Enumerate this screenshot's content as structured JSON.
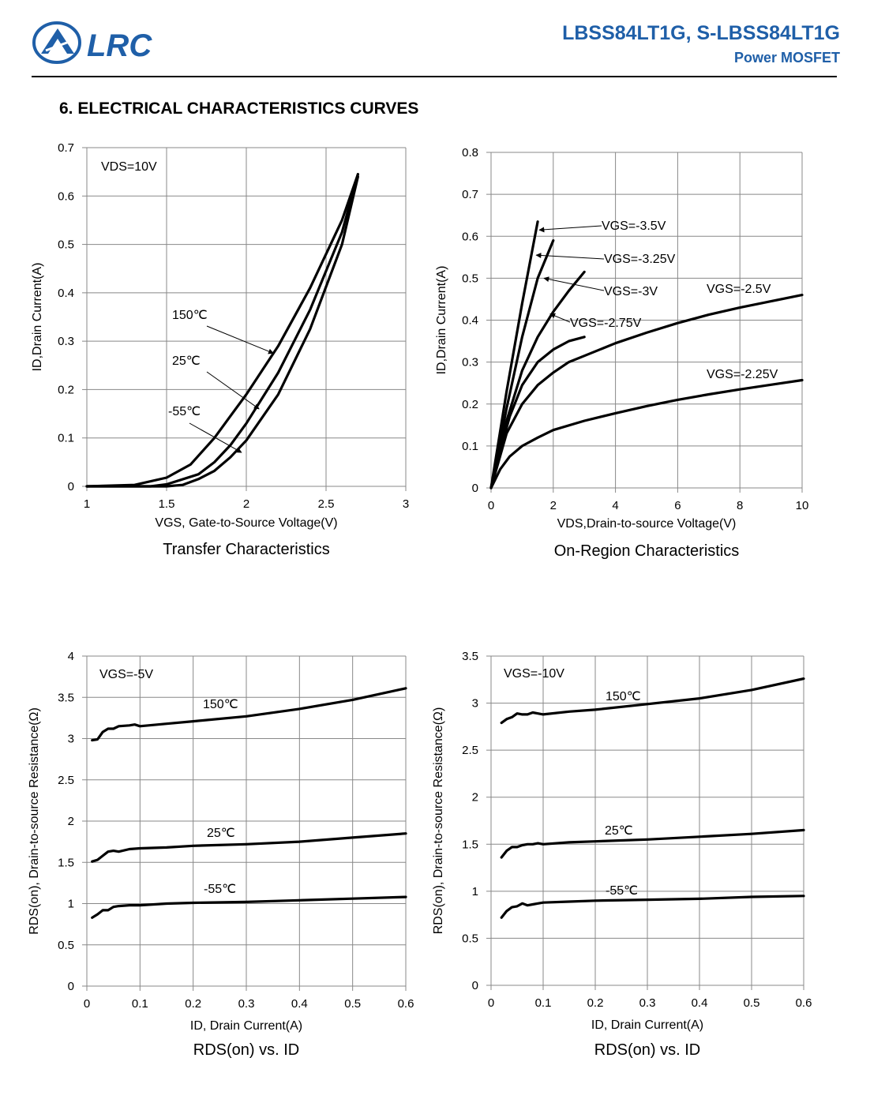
{
  "header": {
    "logo_text": "LRC",
    "title": "LBSS84LT1G, S-LBSS84LT1G",
    "subtitle": "Power MOSFET",
    "brand_color": "#1F5FA8"
  },
  "section_title": "6. ELECTRICAL CHARACTERISTICS CURVES",
  "chart_data": [
    {
      "type": "line",
      "title": "Transfer Characteristics",
      "xlabel": "VGS, Gate-to-Source Voltage(V)",
      "ylabel": "ID,Drain Current(A)",
      "xlim": [
        1,
        3
      ],
      "ylim": [
        0,
        0.7
      ],
      "xticks": [
        1,
        1.5,
        2,
        2.5,
        3
      ],
      "yticks": [
        0,
        0.1,
        0.2,
        0.3,
        0.4,
        0.5,
        0.6,
        0.7
      ],
      "grid": true,
      "annotation": "VDS=10V",
      "series": [
        {
          "name": "150℃",
          "x": [
            1.0,
            1.3,
            1.5,
            1.65,
            1.8,
            1.9,
            2.0,
            2.2,
            2.4,
            2.6,
            2.7
          ],
          "y": [
            0.0,
            0.003,
            0.018,
            0.045,
            0.1,
            0.145,
            0.19,
            0.29,
            0.41,
            0.55,
            0.645
          ]
        },
        {
          "name": "25℃",
          "x": [
            1.0,
            1.4,
            1.5,
            1.7,
            1.8,
            1.9,
            2.0,
            2.2,
            2.4,
            2.6,
            2.7
          ],
          "y": [
            0.0,
            0.0,
            0.004,
            0.025,
            0.05,
            0.085,
            0.13,
            0.235,
            0.365,
            0.525,
            0.645
          ]
        },
        {
          "name": "-55℃",
          "x": [
            1.0,
            1.5,
            1.6,
            1.7,
            1.8,
            1.9,
            2.0,
            2.2,
            2.4,
            2.6,
            2.7
          ],
          "y": [
            0.0,
            0.0,
            0.003,
            0.015,
            0.032,
            0.06,
            0.095,
            0.19,
            0.325,
            0.5,
            0.64
          ]
        }
      ]
    },
    {
      "type": "line",
      "title": "On-Region Characteristics",
      "xlabel": "VDS,Drain-to-source Voltage(V)",
      "ylabel": "ID,Drain Current(A)",
      "xlim": [
        0,
        10
      ],
      "ylim": [
        0,
        0.8
      ],
      "xticks": [
        0,
        2,
        4,
        6,
        8,
        10
      ],
      "yticks": [
        0,
        0.1,
        0.2,
        0.3,
        0.4,
        0.5,
        0.6,
        0.7,
        0.8
      ],
      "grid": true,
      "series": [
        {
          "name": "VGS=-3.5V",
          "x": [
            0,
            0.5,
            1.0,
            1.5
          ],
          "y": [
            0,
            0.23,
            0.44,
            0.635
          ]
        },
        {
          "name": "VGS=-3.25V",
          "x": [
            0,
            0.5,
            1.0,
            1.5,
            2.0
          ],
          "y": [
            0,
            0.19,
            0.36,
            0.5,
            0.59
          ]
        },
        {
          "name": "VGS=-3V",
          "x": [
            0,
            0.5,
            1.0,
            1.5,
            2.0,
            2.5,
            3.0
          ],
          "y": [
            0,
            0.16,
            0.28,
            0.36,
            0.42,
            0.47,
            0.515
          ]
        },
        {
          "name": "VGS=-2.75V",
          "x": [
            0,
            0.3,
            0.6,
            1.0,
            1.5,
            2.0,
            2.5,
            3.0
          ],
          "y": [
            0,
            0.09,
            0.17,
            0.245,
            0.3,
            0.33,
            0.35,
            0.36
          ]
        },
        {
          "name": "VGS=-2.5V",
          "x": [
            0,
            0.5,
            1.0,
            1.5,
            2.0,
            2.5,
            3.0,
            4.0,
            5.0,
            6.0,
            7.0,
            8.0,
            9.0,
            10.0
          ],
          "y": [
            0,
            0.13,
            0.2,
            0.245,
            0.275,
            0.3,
            0.315,
            0.345,
            0.37,
            0.393,
            0.413,
            0.43,
            0.445,
            0.46
          ]
        },
        {
          "name": "VGS=-2.25V",
          "x": [
            0,
            0.3,
            0.6,
            1.0,
            1.5,
            2.0,
            3.0,
            4.0,
            5.0,
            6.0,
            7.0,
            8.0,
            9.0,
            10.0
          ],
          "y": [
            0,
            0.045,
            0.075,
            0.1,
            0.12,
            0.138,
            0.16,
            0.178,
            0.195,
            0.21,
            0.223,
            0.235,
            0.246,
            0.257
          ]
        }
      ]
    },
    {
      "type": "line",
      "title": "RDS(on) vs.  ID",
      "xlabel": "ID, Drain Current(A)",
      "ylabel": "RDS(on), Drain-to-source Resistance(Ω)",
      "xlim": [
        0,
        0.6
      ],
      "ylim": [
        0,
        4
      ],
      "xticks": [
        0,
        0.1,
        0.2,
        0.3,
        0.4,
        0.5,
        0.6
      ],
      "yticks": [
        0,
        0.5,
        1,
        1.5,
        2,
        2.5,
        3,
        3.5,
        4
      ],
      "grid": true,
      "annotation": "VGS=-5V",
      "series": [
        {
          "name": "150℃",
          "x": [
            0.01,
            0.02,
            0.03,
            0.04,
            0.05,
            0.06,
            0.08,
            0.09,
            0.1,
            0.15,
            0.2,
            0.3,
            0.4,
            0.5,
            0.6
          ],
          "y": [
            2.98,
            2.99,
            3.08,
            3.12,
            3.12,
            3.15,
            3.16,
            3.17,
            3.15,
            3.18,
            3.21,
            3.27,
            3.36,
            3.47,
            3.61
          ]
        },
        {
          "name": "25℃",
          "x": [
            0.01,
            0.02,
            0.03,
            0.04,
            0.05,
            0.06,
            0.08,
            0.1,
            0.15,
            0.2,
            0.3,
            0.4,
            0.5,
            0.6
          ],
          "y": [
            1.51,
            1.53,
            1.58,
            1.63,
            1.64,
            1.63,
            1.66,
            1.67,
            1.68,
            1.7,
            1.72,
            1.75,
            1.8,
            1.85
          ]
        },
        {
          "name": "-55℃",
          "x": [
            0.01,
            0.02,
            0.03,
            0.04,
            0.05,
            0.06,
            0.08,
            0.1,
            0.15,
            0.2,
            0.3,
            0.4,
            0.5,
            0.6
          ],
          "y": [
            0.83,
            0.87,
            0.92,
            0.92,
            0.96,
            0.97,
            0.98,
            0.98,
            1.0,
            1.01,
            1.02,
            1.04,
            1.06,
            1.08
          ]
        }
      ]
    },
    {
      "type": "line",
      "title": "RDS(on) vs.  ID",
      "xlabel": "ID, Drain Current(A)",
      "ylabel": "RDS(on), Drain-to-source Resistance(Ω)",
      "xlim": [
        0,
        0.6
      ],
      "ylim": [
        0,
        3.5
      ],
      "xticks": [
        0,
        0.1,
        0.2,
        0.3,
        0.4,
        0.5,
        0.6
      ],
      "yticks": [
        0,
        0.5,
        1,
        1.5,
        2,
        2.5,
        3,
        3.5
      ],
      "grid": true,
      "annotation": "VGS=-10V",
      "series": [
        {
          "name": "150℃",
          "x": [
            0.02,
            0.03,
            0.04,
            0.05,
            0.06,
            0.07,
            0.08,
            0.09,
            0.1,
            0.15,
            0.2,
            0.3,
            0.4,
            0.5,
            0.6
          ],
          "y": [
            2.79,
            2.83,
            2.85,
            2.89,
            2.88,
            2.88,
            2.9,
            2.89,
            2.88,
            2.91,
            2.93,
            2.99,
            3.05,
            3.14,
            3.26
          ]
        },
        {
          "name": "25℃",
          "x": [
            0.02,
            0.03,
            0.04,
            0.05,
            0.06,
            0.07,
            0.08,
            0.09,
            0.1,
            0.15,
            0.2,
            0.3,
            0.4,
            0.5,
            0.6
          ],
          "y": [
            1.36,
            1.43,
            1.47,
            1.47,
            1.49,
            1.5,
            1.5,
            1.51,
            1.5,
            1.52,
            1.53,
            1.55,
            1.58,
            1.61,
            1.65
          ]
        },
        {
          "name": "-55℃",
          "x": [
            0.02,
            0.03,
            0.04,
            0.05,
            0.06,
            0.07,
            0.08,
            0.09,
            0.1,
            0.15,
            0.2,
            0.3,
            0.4,
            0.5,
            0.6
          ],
          "y": [
            0.72,
            0.79,
            0.83,
            0.84,
            0.87,
            0.85,
            0.86,
            0.87,
            0.88,
            0.89,
            0.9,
            0.91,
            0.92,
            0.94,
            0.95
          ]
        }
      ]
    }
  ]
}
